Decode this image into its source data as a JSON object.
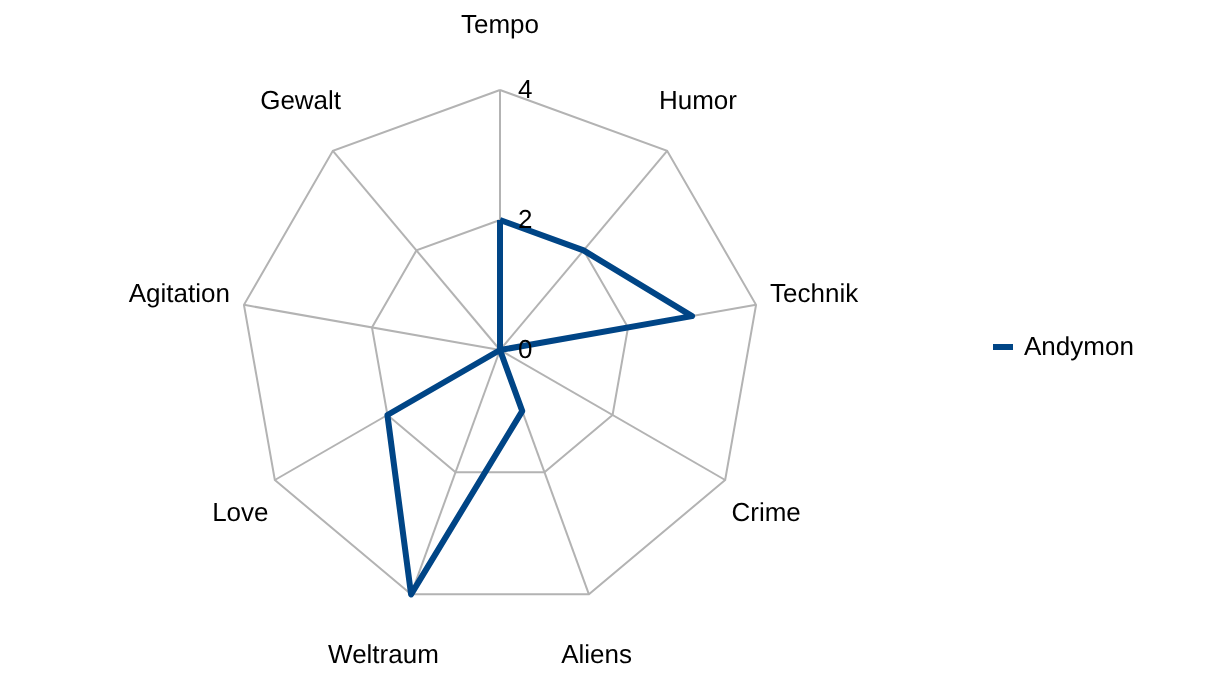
{
  "chart_data": {
    "type": "radar",
    "categories": [
      "Tempo",
      "Humor",
      "Technik",
      "Crime",
      "Aliens",
      "Weltraum",
      "Love",
      "Agitation",
      "Gewalt"
    ],
    "series": [
      {
        "name": "Andymon",
        "color": "#004586",
        "values": [
          2,
          2,
          3,
          0,
          1,
          4,
          2,
          0,
          0
        ]
      }
    ],
    "ylim": [
      0,
      4
    ],
    "yticks": [
      0,
      2,
      4
    ],
    "grid": true,
    "legend": "right"
  }
}
